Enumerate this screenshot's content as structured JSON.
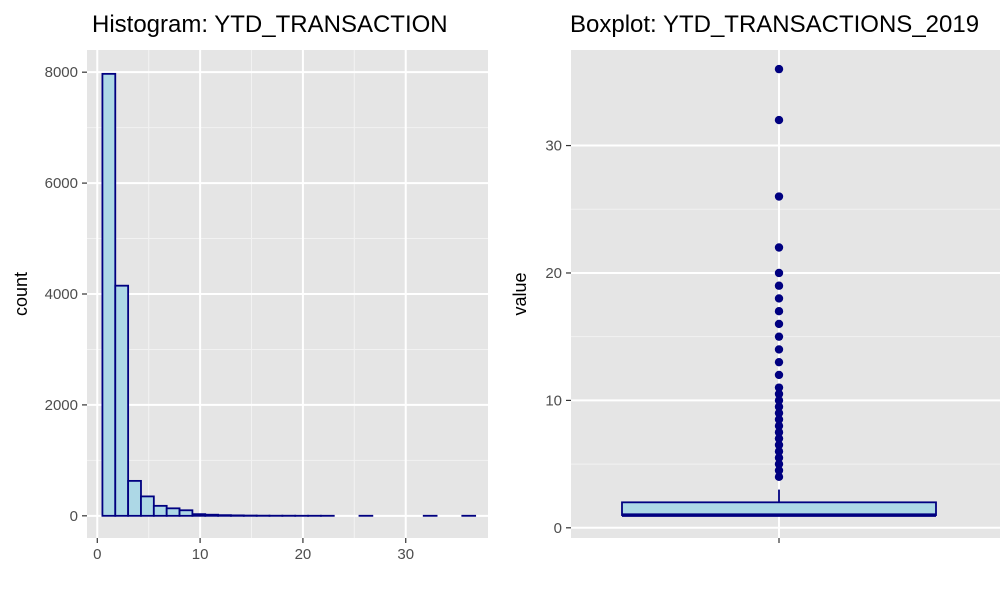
{
  "chart_data": [
    {
      "type": "histogram",
      "title": "Histogram: YTD_TRANSACTION",
      "xlabel": "",
      "ylabel": "count",
      "xlim": [
        -1,
        38
      ],
      "ylim": [
        -400,
        8400
      ],
      "xticks": [
        0,
        10,
        20,
        30
      ],
      "yticks": [
        0,
        2000,
        4000,
        6000,
        8000
      ],
      "grid": true,
      "bar_fill": "#add8e6",
      "bar_stroke": "#000080",
      "bins": [
        {
          "x0": 0.5,
          "x1": 1.75,
          "count": 7970
        },
        {
          "x0": 1.75,
          "x1": 3.0,
          "count": 4150
        },
        {
          "x0": 3.0,
          "x1": 4.25,
          "count": 630
        },
        {
          "x0": 4.25,
          "x1": 5.5,
          "count": 350
        },
        {
          "x0": 5.5,
          "x1": 6.75,
          "count": 180
        },
        {
          "x0": 6.75,
          "x1": 8.0,
          "count": 135
        },
        {
          "x0": 8.0,
          "x1": 9.25,
          "count": 100
        },
        {
          "x0": 9.25,
          "x1": 10.5,
          "count": 30
        },
        {
          "x0": 10.5,
          "x1": 11.75,
          "count": 20
        },
        {
          "x0": 11.75,
          "x1": 13.0,
          "count": 12
        },
        {
          "x0": 13.0,
          "x1": 14.25,
          "count": 8
        },
        {
          "x0": 14.25,
          "x1": 15.5,
          "count": 5
        },
        {
          "x0": 15.5,
          "x1": 16.75,
          "count": 3
        },
        {
          "x0": 16.75,
          "x1": 18.0,
          "count": 2
        },
        {
          "x0": 18.0,
          "x1": 19.25,
          "count": 2
        },
        {
          "x0": 19.25,
          "x1": 20.5,
          "count": 1
        },
        {
          "x0": 20.5,
          "x1": 21.75,
          "count": 1
        },
        {
          "x0": 21.75,
          "x1": 23.0,
          "count": 1
        },
        {
          "x0": 23.0,
          "x1": 24.25,
          "count": 0
        },
        {
          "x0": 24.25,
          "x1": 25.5,
          "count": 0
        },
        {
          "x0": 25.5,
          "x1": 26.75,
          "count": 1
        },
        {
          "x0": 26.75,
          "x1": 28.0,
          "count": 0
        },
        {
          "x0": 28.0,
          "x1": 29.25,
          "count": 0
        },
        {
          "x0": 29.25,
          "x1": 30.5,
          "count": 0
        },
        {
          "x0": 30.5,
          "x1": 31.75,
          "count": 0
        },
        {
          "x0": 31.75,
          "x1": 33.0,
          "count": 1
        },
        {
          "x0": 33.0,
          "x1": 34.25,
          "count": 0
        },
        {
          "x0": 34.25,
          "x1": 35.5,
          "count": 0
        },
        {
          "x0": 35.5,
          "x1": 36.75,
          "count": 1
        }
      ]
    },
    {
      "type": "boxplot",
      "title": "Boxplot: YTD_TRANSACTIONS_2019",
      "xlabel": "",
      "ylabel": "value",
      "ylim": [
        -0.8,
        37.5
      ],
      "yticks": [
        0,
        10,
        20,
        30
      ],
      "grid": true,
      "box_fill": "#add8e6",
      "box_stroke": "#000080",
      "box": {
        "min": 1,
        "q1": 1,
        "median": 1,
        "q3": 2,
        "whisker_high": 3
      },
      "outliers": [
        4,
        4.5,
        5,
        5.5,
        6,
        6.5,
        7,
        7.5,
        8,
        8.5,
        9,
        9.5,
        10,
        10.5,
        11,
        12,
        13,
        14,
        15,
        16,
        17,
        18,
        19,
        20,
        22,
        26,
        32,
        36
      ]
    }
  ]
}
